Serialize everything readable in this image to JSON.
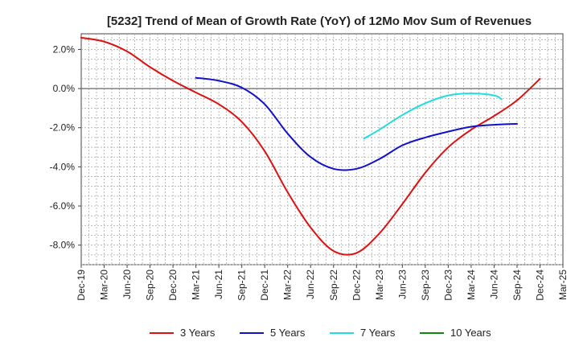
{
  "chart_data": {
    "type": "line",
    "title": "[5232]  Trend of Mean of Growth Rate (YoY) of 12Mo Mov Sum of Revenues",
    "xlabel": "",
    "ylabel": "",
    "ylim": [
      -9.0,
      2.8
    ],
    "grid": true,
    "y_ticks": [
      2,
      0,
      -2,
      -4,
      -6,
      -8
    ],
    "y_tick_labels": [
      "2.0%",
      "0.0%",
      "-2.0%",
      "-4.0%",
      "-6.0%",
      "-8.0%"
    ],
    "x_tick_labels": [
      "Dec-19",
      "Mar-20",
      "Jun-20",
      "Sep-20",
      "Dec-20",
      "Mar-21",
      "Jun-21",
      "Sep-21",
      "Dec-21",
      "Mar-22",
      "Jun-22",
      "Sep-22",
      "Dec-22",
      "Mar-23",
      "Jun-23",
      "Sep-23",
      "Dec-23",
      "Mar-24",
      "Jun-24",
      "Sep-24",
      "Dec-24",
      "Mar-25"
    ],
    "legend_position": "bottom",
    "series": [
      {
        "name": "3 Years",
        "color": "#dd1111",
        "points": [
          [
            0,
            2.6
          ],
          [
            1,
            2.4
          ],
          [
            2,
            1.9
          ],
          [
            3,
            1.1
          ],
          [
            4,
            0.4
          ],
          [
            5,
            -0.2
          ],
          [
            6,
            -0.8
          ],
          [
            7,
            -1.7
          ],
          [
            8,
            -3.2
          ],
          [
            9,
            -5.3
          ],
          [
            10,
            -7.1
          ],
          [
            11,
            -8.3
          ],
          [
            12,
            -8.4
          ],
          [
            13,
            -7.4
          ],
          [
            14,
            -5.9
          ],
          [
            15,
            -4.3
          ],
          [
            16,
            -3.0
          ],
          [
            17,
            -2.1
          ],
          [
            18,
            -1.4
          ],
          [
            19,
            -0.6
          ],
          [
            20,
            0.5
          ]
        ]
      },
      {
        "name": "5 Years",
        "color": "#1111cc",
        "points": [
          [
            5,
            0.55
          ],
          [
            6,
            0.4
          ],
          [
            7,
            0.05
          ],
          [
            8,
            -0.8
          ],
          [
            9,
            -2.3
          ],
          [
            10,
            -3.5
          ],
          [
            11,
            -4.1
          ],
          [
            12,
            -4.1
          ],
          [
            13,
            -3.6
          ],
          [
            14,
            -2.9
          ],
          [
            15,
            -2.5
          ],
          [
            16,
            -2.2
          ],
          [
            17,
            -1.95
          ],
          [
            18,
            -1.85
          ],
          [
            19,
            -1.8
          ]
        ]
      },
      {
        "name": "7 Years",
        "color": "#22dddd",
        "points": [
          [
            12.33,
            -2.55
          ],
          [
            13,
            -2.1
          ],
          [
            14,
            -1.35
          ],
          [
            15,
            -0.75
          ],
          [
            16,
            -0.35
          ],
          [
            17,
            -0.25
          ],
          [
            18,
            -0.35
          ],
          [
            18.33,
            -0.55
          ]
        ]
      },
      {
        "name": "10 Years",
        "color": "#118811",
        "points": []
      }
    ]
  }
}
